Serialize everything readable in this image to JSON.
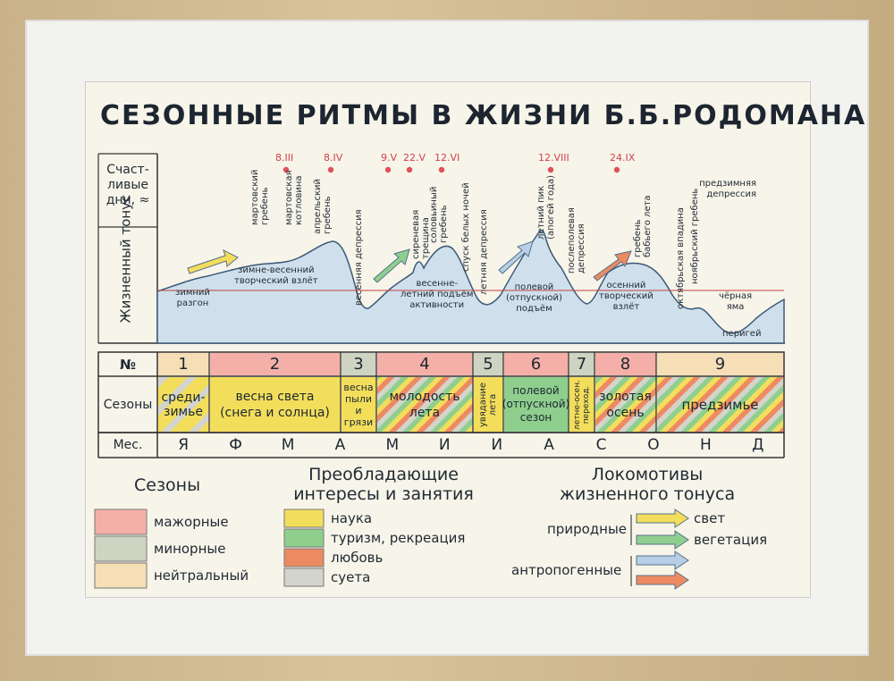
{
  "title": "СЕЗОННЫЕ РИТМЫ В ЖИЗНИ Б.Б.РОДОМАНА",
  "side_labels": {
    "happy_days": [
      "Счаст-",
      "ливые",
      "дни, ≈"
    ],
    "tone": "Жизненный тонус"
  },
  "happy_dates": [
    "8.III",
    "8.IV",
    "9.V",
    "22.V",
    "12.VI",
    "12.VIII",
    "24.IX"
  ],
  "curve_labels": {
    "winter_start": [
      "зимний",
      "разгон"
    ],
    "winter_spring": [
      "зимне-весенний",
      "творческий взлёт"
    ],
    "march_crest": [
      "мартовский",
      "гребень"
    ],
    "march_hollow": [
      "мартовская",
      "котловина"
    ],
    "april_crest": [
      "апрельский",
      "гребень"
    ],
    "spring_depression": "весенняя депрессия",
    "lilac_crack": [
      "сиреневая",
      "трещина"
    ],
    "spring_summer_rise": [
      "весенне-",
      "летний подъём",
      "активности"
    ],
    "nightingale": [
      "соловьиный",
      "гребень"
    ],
    "white_nights": "спуск белых ночей",
    "summer_depression": "летняя депрессия",
    "summer_peak": [
      "летний пик",
      "(апогей года)"
    ],
    "field_rise": [
      "полевой",
      "(отпускной)",
      "подъём"
    ],
    "post_field": [
      "послеполевая",
      "депрессия"
    ],
    "autumn_rise": [
      "осенний",
      "творческий",
      "взлёт"
    ],
    "indian_summer": [
      "гребень",
      "бабьего лета"
    ],
    "october_hollow": "октябрьская впадина",
    "november_crest": "ноябрьский гребень",
    "prewinter_depression": [
      "предзимняя",
      "депрессия"
    ],
    "black_pit": [
      "чёрная",
      "яма"
    ],
    "perigee": "перигей"
  },
  "table": {
    "row_labels": [
      "№",
      "Сезоны",
      "Мес."
    ],
    "numbers": [
      "1",
      "2",
      "3",
      "4",
      "5",
      "6",
      "7",
      "8",
      "9"
    ],
    "seasons": [
      [
        "среди-",
        "зимье"
      ],
      [
        "весна света",
        "(снега и солнца)"
      ],
      [
        "весна",
        "пыли",
        "и",
        "грязи"
      ],
      [
        "молодость",
        "лета"
      ],
      [
        "увядание",
        "лета"
      ],
      [
        "полевой",
        "(отпускной)",
        "сезон"
      ],
      [
        "летне-осен.",
        "переход."
      ],
      [
        "золотая",
        "осень"
      ],
      [
        "предзимье"
      ]
    ],
    "months": [
      "Я",
      "Ф",
      "М",
      "А",
      "М",
      "И",
      "И",
      "А",
      "С",
      "О",
      "Н",
      "Д"
    ]
  },
  "legend": {
    "seasons_title": "Сезоны",
    "seasons": [
      "мажорные",
      "минорные",
      "нейтральный"
    ],
    "interests_title": [
      "Преобладающие",
      "интересы и занятия"
    ],
    "interests": [
      "наука",
      "туризм, рекреация",
      "любовь",
      "суета"
    ],
    "locomotives_title": [
      "Локомотивы",
      "жизненного тонуса"
    ],
    "natural": "природные",
    "anthropogenic": "антропогенные",
    "natural_items": [
      "свет",
      "вегетация"
    ]
  },
  "colors": {
    "major": "#f4b0a8",
    "minor": "#cfd3c2",
    "neutral": "#f6deb6",
    "science": "#f3de5c",
    "tourism": "#8fcf8e",
    "love": "#ee8a62",
    "bustle": "#d3d4cc",
    "sky": "#cfe0ec",
    "date_dot": "#e0505a"
  }
}
